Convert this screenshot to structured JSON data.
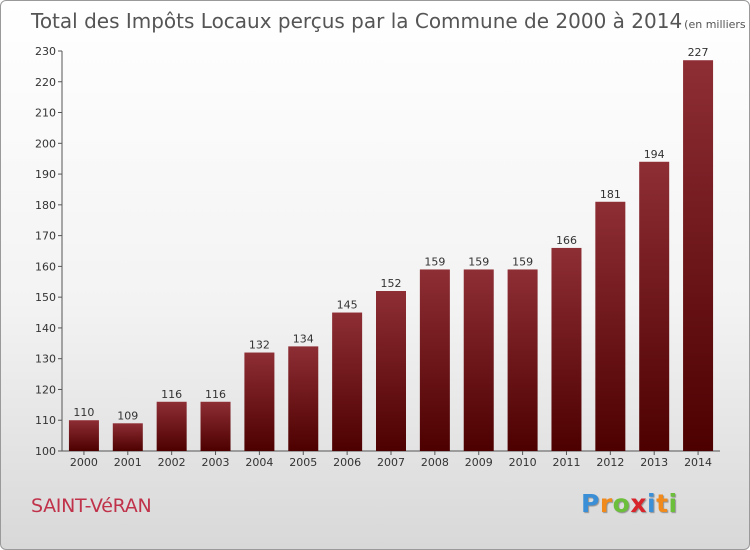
{
  "chart_data": {
    "type": "bar",
    "title": "Total des Impôts Locaux perçus par la Commune de 2000 à 2014",
    "subtitle": "(en milliers d'€)",
    "xlabel": "",
    "ylabel": "",
    "categories": [
      "2000",
      "2001",
      "2002",
      "2003",
      "2004",
      "2005",
      "2006",
      "2007",
      "2008",
      "2009",
      "2010",
      "2011",
      "2012",
      "2013",
      "2014"
    ],
    "values": [
      110,
      109,
      116,
      116,
      132,
      134,
      145,
      152,
      159,
      159,
      159,
      166,
      181,
      194,
      227
    ],
    "ylim": [
      100,
      230
    ],
    "yticks": [
      100,
      110,
      120,
      130,
      140,
      150,
      160,
      170,
      180,
      190,
      200,
      210,
      220,
      230
    ],
    "grid": false,
    "bar_color": "#7a1c24"
  },
  "footer": {
    "commune": "SAINT-VéRAN",
    "logo_letters": [
      {
        "ch": "P",
        "color": "#3a8fd6"
      },
      {
        "ch": "r",
        "color": "#f08a1c"
      },
      {
        "ch": "o",
        "color": "#6cbf3a"
      },
      {
        "ch": "x",
        "color": "#d8252b"
      },
      {
        "ch": "i",
        "color": "#3a8fd6"
      },
      {
        "ch": "t",
        "color": "#f08a1c"
      },
      {
        "ch": "i",
        "color": "#6cbf3a"
      }
    ]
  }
}
